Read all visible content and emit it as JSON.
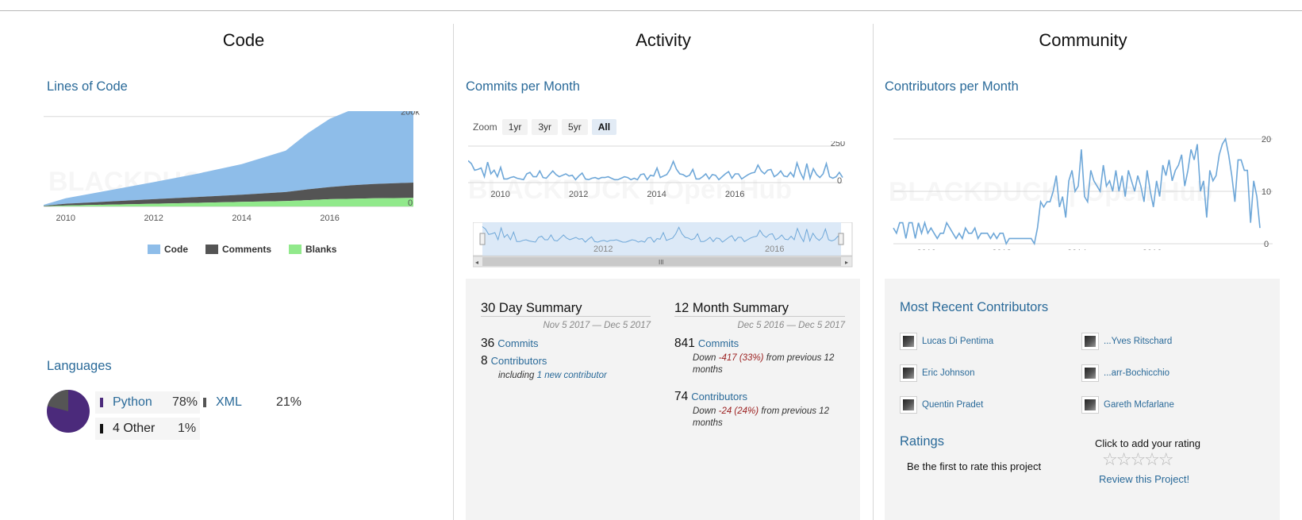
{
  "columns": {
    "code": "Code",
    "activity": "Activity",
    "community": "Community"
  },
  "code": {
    "lines_title": "Lines of Code",
    "loc_chart": {
      "chart_data": {
        "type": "area",
        "title": "",
        "x": [
          2009.5,
          2010,
          2011,
          2012,
          2013,
          2014,
          2015,
          2015.5,
          2016,
          2016.5,
          2017,
          2017.9
        ],
        "series": [
          {
            "name": "Code",
            "values": [
              2000,
              12000,
              25000,
              38000,
              52000,
              68000,
              92000,
              125000,
              152000,
              168000,
              176000,
              188000
            ]
          },
          {
            "name": "Comments",
            "values": [
              1000,
              4000,
              7000,
              10000,
              13000,
              16000,
              20000,
              24000,
              27000,
              30000,
              32000,
              34000
            ]
          },
          {
            "name": "Blanks",
            "values": [
              500,
              2000,
              4000,
              6000,
              8000,
              10000,
              12000,
              14000,
              16000,
              17000,
              18000,
              19000
            ]
          }
        ],
        "ylim": [
          0,
          250000
        ],
        "y_tick_labels": [
          "0",
          "200k"
        ],
        "x_tick_labels": [
          "2010",
          "2012",
          "2014",
          "2016"
        ],
        "grid": true,
        "legend": "bottom",
        "colors": {
          "Code": "#8ebde9",
          "Comments": "#545454",
          "Blanks": "#91e98b"
        }
      }
    },
    "languages_title": "Languages",
    "languages": [
      {
        "name": "Python",
        "percent": "78%",
        "color": "#4b2a7b",
        "link": true
      },
      {
        "name": "XML",
        "percent": "21%",
        "color": "#555555",
        "link": true
      },
      {
        "name": "4 Other",
        "percent": "1%",
        "color": "#111111",
        "link": false
      }
    ]
  },
  "activity": {
    "commits_title": "Commits per Month",
    "zoom": {
      "label": "Zoom",
      "buttons": [
        "1yr",
        "3yr",
        "5yr",
        "All"
      ],
      "active": "All"
    },
    "commits_chart": {
      "chart_data": {
        "type": "line",
        "title": "",
        "x_start": "2009-07",
        "x_end": "2017-12",
        "x_tick_labels": [
          "2010",
          "2012",
          "2014",
          "2016"
        ],
        "y_tick_labels": [
          "0",
          "250"
        ],
        "ylim": [
          0,
          250
        ],
        "series": [
          {
            "values": [
              150,
              130,
              85,
              90,
              100,
              40,
              140,
              60,
              85,
              40,
              105,
              25,
              25,
              35,
              40,
              30,
              25,
              20,
              60,
              70,
              40,
              40,
              80,
              35,
              30,
              55,
              80,
              55,
              40,
              50,
              60,
              45,
              50,
              20,
              45,
              65,
              25,
              20,
              30,
              35,
              25,
              35,
              35,
              40,
              30,
              20,
              20,
              30,
              40,
              35,
              20,
              30,
              20,
              55,
              60,
              20,
              50,
              45,
              100,
              35,
              45,
              55,
              90,
              145,
              90,
              60,
              55,
              40,
              50,
              90,
              25,
              25,
              40,
              60,
              25,
              55,
              50,
              20,
              40,
              60,
              75,
              30,
              60,
              60,
              25,
              40,
              55,
              65,
              70,
              120,
              80,
              60,
              85,
              90,
              40,
              55,
              80,
              45,
              40,
              70,
              40,
              135,
              70,
              25,
              130,
              30,
              95,
              55,
              35,
              60,
              130,
              40,
              30,
              40,
              70,
              35
            ]
          }
        ],
        "grid": true,
        "legend": "none",
        "colors": {
          "line": "#6ea7d8"
        }
      },
      "navigator": {
        "labels": [
          "2012",
          "2016"
        ],
        "scrollbar_grip": "III"
      }
    },
    "summary30": {
      "title": "30 Day Summary",
      "dates": "Nov 5 2017 — Dec 5 2017",
      "commits_num": "36",
      "commits_label": "Commits",
      "contributors_num": "8",
      "contributors_label": "Contributors",
      "including": "including",
      "new_contributor": "1 new contributor"
    },
    "summary12": {
      "title": "12 Month Summary",
      "dates": "Dec 5 2016 — Dec 5 2017",
      "commits_num": "841",
      "commits_label": "Commits",
      "commits_down_prefix": "Down",
      "commits_down_value": "-417 (33%)",
      "commits_down_suffix": "from previous 12 months",
      "contributors_num": "74",
      "contributors_label": "Contributors",
      "contributors_down_prefix": "Down",
      "contributors_down_value": "-24 (24%)",
      "contributors_down_suffix": "from previous 12 months"
    }
  },
  "community": {
    "contributors_title": "Contributors per Month",
    "contributors_chart": {
      "chart_data": {
        "type": "line",
        "title": "",
        "x_start": "2009-07",
        "x_end": "2017-12",
        "x_tick_labels": [
          "2010",
          "2012",
          "2014",
          "2016"
        ],
        "y_tick_labels": [
          "0",
          "10",
          "20"
        ],
        "ylim": [
          0,
          20
        ],
        "series": [
          {
            "values": [
              3,
              2,
              4,
              4,
              1,
              4,
              4,
              1,
              4,
              2,
              4,
              2,
              3,
              2,
              1,
              2,
              2,
              4,
              3,
              2,
              1,
              2,
              1,
              3,
              2,
              2,
              3,
              1,
              2,
              2,
              2,
              1,
              2,
              1,
              2,
              2,
              0,
              1,
              1,
              1,
              1,
              1,
              1,
              1,
              1,
              0,
              3,
              8,
              7,
              8,
              8,
              10,
              13,
              7,
              9,
              5,
              12,
              14,
              10,
              11,
              18,
              9,
              8,
              14,
              12,
              11,
              10,
              15,
              11,
              12,
              10,
              14,
              10,
              13,
              9,
              14,
              12,
              10,
              13,
              11,
              8,
              14,
              10,
              7,
              12,
              9,
              15,
              13,
              16,
              12,
              14,
              15,
              17,
              11,
              14,
              18,
              16,
              19,
              10,
              12,
              5,
              14,
              12,
              13,
              17,
              19,
              20,
              17,
              13,
              8,
              16,
              16,
              14,
              14,
              4,
              12,
              9,
              3
            ]
          }
        ],
        "grid": true,
        "legend": "none",
        "colors": {
          "line": "#6ea7d8"
        }
      }
    },
    "recent_title": "Most Recent Contributors",
    "recent_contributors": [
      "Lucas Di Pentima",
      "...Yves Ritschard",
      "Eric Johnson",
      "...arr-Bochicchio",
      "Quentin Pradet",
      "Gareth Mcfarlane"
    ],
    "ratings": {
      "title": "Ratings",
      "first_to_rate": "Be the first to rate this project",
      "click_to_add": "Click to add your rating",
      "stars": "☆☆☆☆☆",
      "review_link": "Review this Project!"
    }
  },
  "watermark": "BLACKDUCK | Open Hub"
}
